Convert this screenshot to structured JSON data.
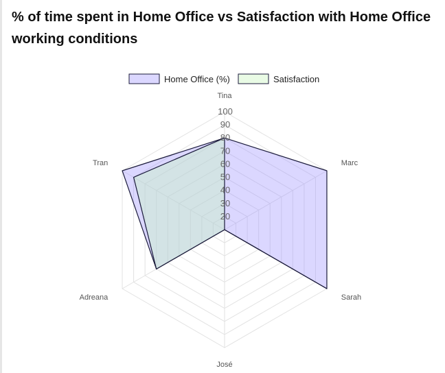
{
  "page": {
    "title": "% of time spent in Home Office vs Satisfaction with Home Office working conditions"
  },
  "chart_data": {
    "type": "radar",
    "title": "% of time spent in Home Office vs Satisfaction with Home Office working conditions",
    "categories": [
      "Tina",
      "Marc",
      "Sarah",
      "José",
      "Adreana",
      "Tran"
    ],
    "series": [
      {
        "name": "Home Office (%)",
        "values": [
          80,
          100,
          100,
          0,
          70,
          100
        ],
        "fill": "rgba(160,150,255,0.38)",
        "stroke": "#1a1a3a"
      },
      {
        "name": "Satisfaction",
        "values": [
          80,
          0,
          100,
          0,
          70,
          90
        ],
        "fill": "rgba(200,245,190,0.40)",
        "stroke": "#1a1a3a"
      }
    ],
    "r_ticks": [
      20,
      30,
      40,
      50,
      60,
      70,
      80,
      90,
      100
    ],
    "rlim": [
      10,
      100
    ],
    "grid": true,
    "legend": "top",
    "colors": {
      "grid": "#e2e2e2",
      "tick_text": "#666666",
      "axis_text": "#555555",
      "legend_text": "#222222"
    }
  }
}
